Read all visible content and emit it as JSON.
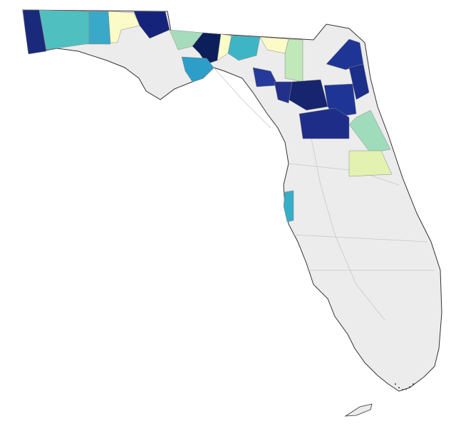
{
  "chart_data": {
    "type": "choropleth",
    "base_color": "#ececec",
    "region_colors": [
      "#1a2a7a",
      "#4fbfc0",
      "#3aa8c8",
      "#fbfbc8",
      "#15237a",
      "#a6dcbc",
      "#0c1f5a",
      "#2c9ec8",
      "#fbfbc8",
      "#3db5c4",
      "#fbfbc8",
      "#c0e8b8",
      "#253a9a",
      "#17256e",
      "#22308a",
      "#1f3595",
      "#1f3595",
      "#1a2e8a",
      "#1e2e88",
      "#9fdcbc",
      "#e3f2b0",
      "#37aec8"
    ]
  }
}
